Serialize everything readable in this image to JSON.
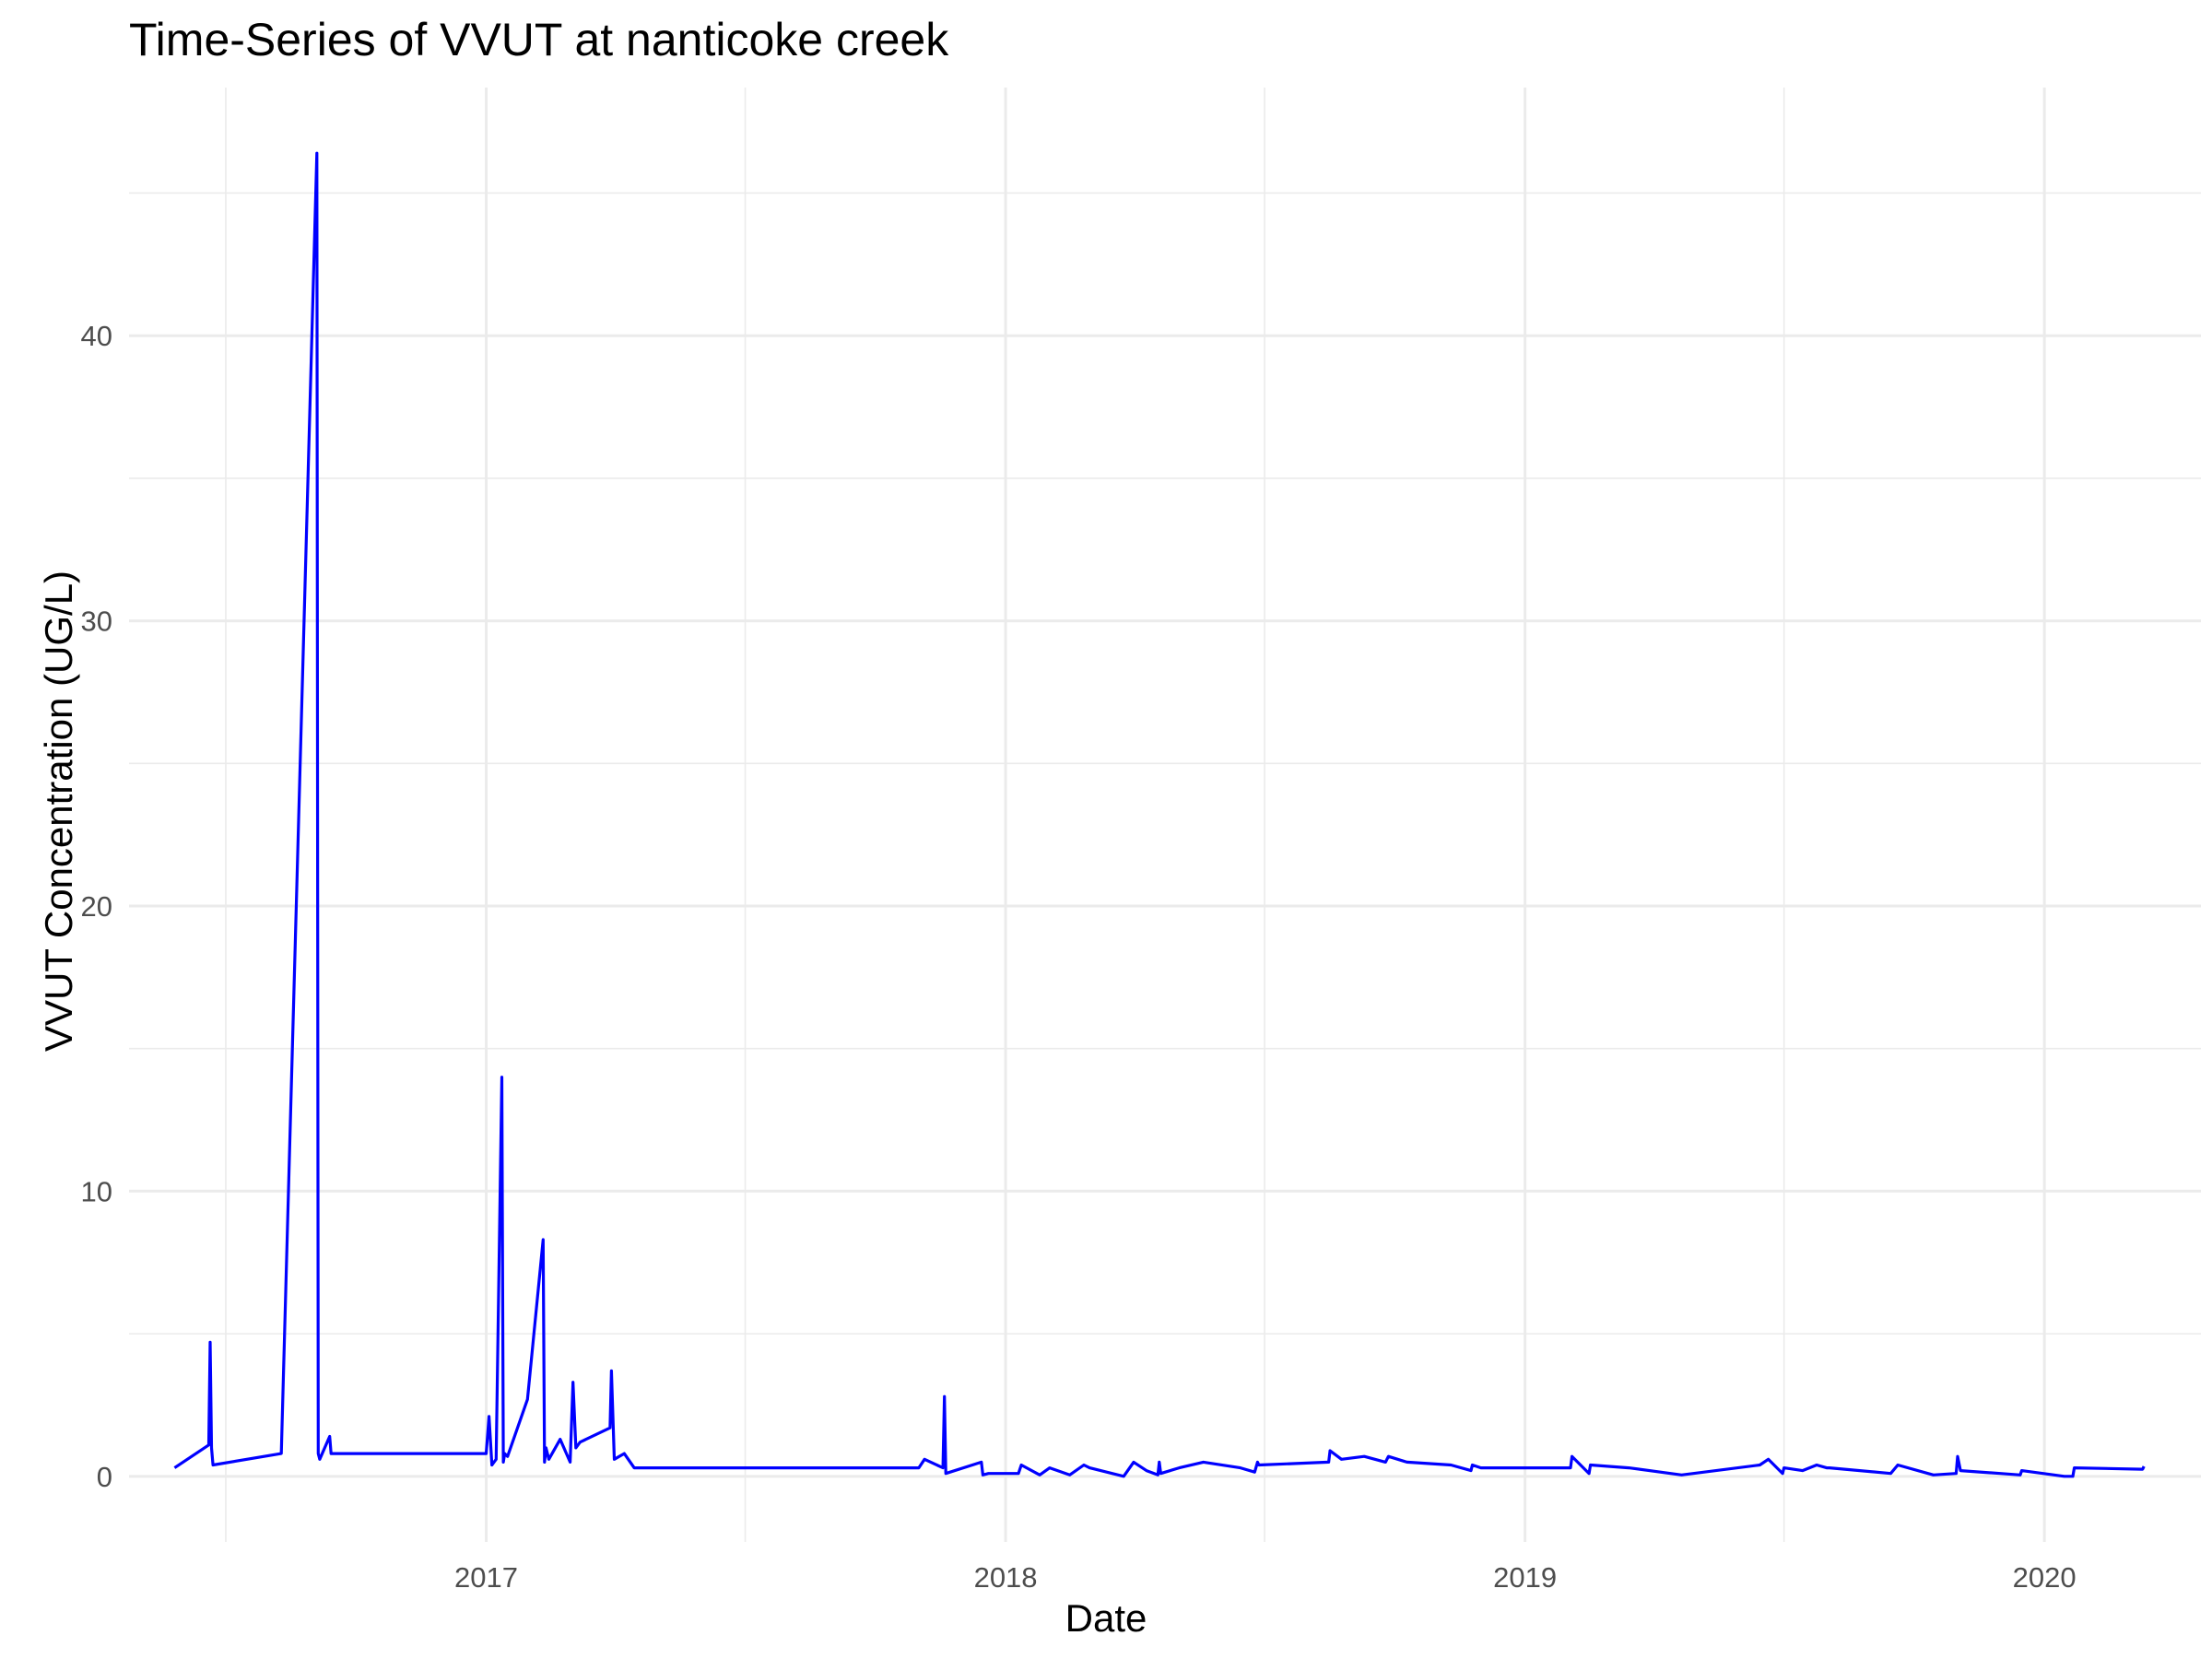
{
  "chart_data": {
    "type": "line",
    "title": "Time-Series of VVUT at nanticoke creek",
    "xlabel": "Date",
    "ylabel": "VVUT Concentration (UG/L)",
    "x_ticks": [
      "2017",
      "2018",
      "2019",
      "2020"
    ],
    "y_ticks": [
      0,
      10,
      20,
      30,
      40
    ],
    "xlim": [
      "2016-04-25",
      "2020-04-20"
    ],
    "ylim": [
      -2.3,
      48.7
    ],
    "grid": true,
    "legend": "none",
    "colors": {
      "line": "#0000ff",
      "grid": "#ebebeb",
      "tick_text": "#4d4d4d"
    },
    "series": [
      {
        "x": [
          "2016-05-27",
          "2016-06-20",
          "2016-06-21",
          "2016-06-22",
          "2016-06-23",
          "2016-08-10",
          "2016-09-04",
          "2016-09-05",
          "2016-09-06",
          "2016-09-13",
          "2016-09-14",
          "2017-01-01",
          "2017-01-03",
          "2017-01-05",
          "2017-01-08",
          "2017-01-12",
          "2017-01-13",
          "2017-01-14",
          "2017-01-16",
          "2017-01-30",
          "2017-02-10",
          "2017-02-11",
          "2017-02-12",
          "2017-02-14",
          "2017-02-22",
          "2017-03-01",
          "2017-03-03",
          "2017-03-05",
          "2017-03-08",
          "2017-03-29",
          "2017-03-30",
          "2017-04-01",
          "2017-04-08",
          "2017-04-15",
          "2017-11-01",
          "2017-11-05",
          "2017-11-18",
          "2017-11-19",
          "2017-11-20",
          "2017-12-15",
          "2017-12-16",
          "2017-12-20",
          "2018-01-10",
          "2018-01-12",
          "2018-01-25",
          "2018-02-01",
          "2018-02-15",
          "2018-02-25",
          "2018-03-01",
          "2018-03-25",
          "2018-04-01",
          "2018-04-10",
          "2018-04-18",
          "2018-04-19",
          "2018-04-20",
          "2018-05-03",
          "2018-05-20",
          "2018-06-15",
          "2018-06-25",
          "2018-06-27",
          "2018-06-28",
          "2018-08-16",
          "2018-08-17",
          "2018-08-25",
          "2018-09-10",
          "2018-09-25",
          "2018-09-27",
          "2018-10-10",
          "2018-11-10",
          "2018-11-24",
          "2018-11-25",
          "2018-12-01",
          "2019-02-02",
          "2019-02-03",
          "2019-02-15",
          "2019-02-16",
          "2019-03-15",
          "2019-04-21",
          "2019-06-15",
          "2019-06-21",
          "2019-07-01",
          "2019-07-02",
          "2019-07-15",
          "2019-07-25",
          "2019-08-01",
          "2019-08-03",
          "2019-09-15",
          "2019-09-20",
          "2019-10-15",
          "2019-10-31",
          "2019-11-01",
          "2019-11-03",
          "2019-12-01",
          "2019-12-15",
          "2019-12-16",
          "2020-01-15",
          "2020-01-21",
          "2020-01-22",
          "2020-03-10",
          "2020-03-11"
        ],
        "y": [
          0.3,
          1.1,
          4.7,
          1.0,
          0.4,
          0.8,
          46.4,
          0.8,
          0.6,
          1.4,
          0.8,
          0.8,
          2.1,
          0.4,
          0.6,
          14.0,
          0.5,
          0.8,
          0.7,
          2.7,
          8.3,
          0.5,
          1.0,
          0.6,
          1.3,
          0.5,
          3.3,
          1.0,
          1.2,
          1.7,
          3.7,
          0.6,
          0.8,
          0.3,
          0.3,
          0.6,
          0.3,
          2.8,
          0.1,
          0.5,
          0.05,
          0.1,
          0.1,
          0.4,
          0.05,
          0.3,
          0.05,
          0.4,
          0.3,
          0.0,
          0.5,
          0.2,
          0.05,
          0.5,
          0.1,
          0.3,
          0.5,
          0.3,
          0.15,
          0.5,
          0.4,
          0.5,
          0.9,
          0.6,
          0.7,
          0.5,
          0.7,
          0.5,
          0.4,
          0.2,
          0.4,
          0.3,
          0.3,
          0.7,
          0.1,
          0.4,
          0.3,
          0.05,
          0.4,
          0.6,
          0.1,
          0.3,
          0.2,
          0.4,
          0.3,
          0.3,
          0.1,
          0.4,
          0.05,
          0.1,
          0.7,
          0.2,
          0.1,
          0.05,
          0.2,
          0.0,
          0.0,
          0.3,
          0.25,
          0.35
        ]
      }
    ]
  }
}
